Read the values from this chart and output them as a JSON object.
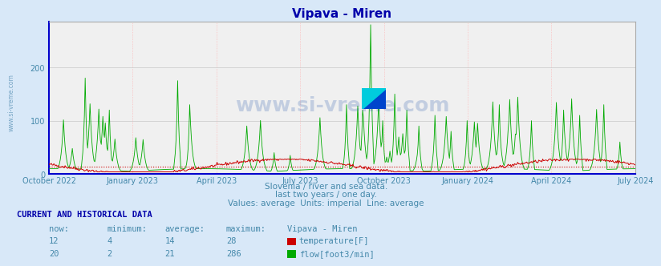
{
  "title": "Vipava - Miren",
  "bg_color": "#d8e8f8",
  "plot_bg_color": "#f0f0f0",
  "grid_color_h": "#c8c8c8",
  "grid_color_v": "#ffaaaa",
  "title_color": "#0000aa",
  "axis_label_color": "#4488aa",
  "text_color": "#4488aa",
  "ylim": [
    0,
    286
  ],
  "yticks": [
    0,
    100,
    200
  ],
  "xlabel_dates": [
    "October 2022",
    "January 2023",
    "April 2023",
    "July 2023",
    "October 2023",
    "January 2024",
    "April 2024",
    "July 2024"
  ],
  "watermark": "www.si-vreme.com",
  "subtitle_lines": [
    "Slovenia / river and sea data.",
    "last two years / one day.",
    "Values: average  Units: imperial  Line: average"
  ],
  "table_header": "CURRENT AND HISTORICAL DATA",
  "table_cols": [
    "now:",
    "minimum:",
    "average:",
    "maximum:",
    "Vipava - Miren"
  ],
  "temp_row": [
    "12",
    "4",
    "14",
    "28",
    "temperature[F]"
  ],
  "flow_row": [
    "20",
    "2",
    "21",
    "286",
    "flow[foot3/min]"
  ],
  "temp_color": "#cc0000",
  "flow_color": "#00aa00",
  "avg_temp": 14,
  "n_points": 730
}
